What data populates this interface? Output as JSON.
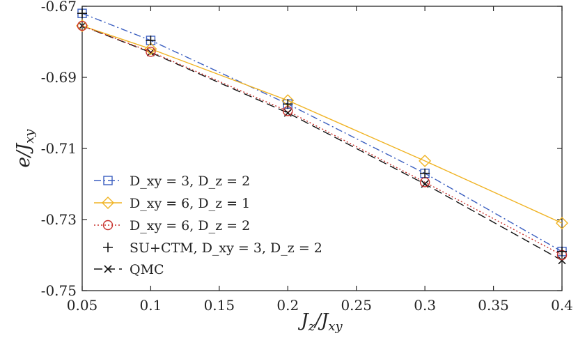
{
  "chart_data": {
    "type": "line",
    "title": "",
    "xlabel": "J_z/J_xy",
    "ylabel": "e/J_xy",
    "xlim": [
      0.05,
      0.4
    ],
    "ylim": [
      -0.75,
      -0.67
    ],
    "x_ticks": [
      0.05,
      0.1,
      0.15,
      0.2,
      0.25,
      0.3,
      0.35,
      0.4
    ],
    "x_tick_labels": [
      "0.05",
      "0.1",
      "0.15",
      "0.2",
      "0.25",
      "0.3",
      "0.35",
      "0.4"
    ],
    "y_ticks": [
      -0.67,
      -0.69,
      -0.71,
      -0.73,
      -0.75
    ],
    "y_tick_labels": [
      "-0.67",
      "-0.69",
      "-0.71",
      "-0.73",
      "-0.75"
    ],
    "grid": false,
    "legend_position": "bottom-left",
    "series": [
      {
        "name": "D_xy = 3, D_z = 2",
        "color": "#3b5fc0",
        "line": "dashdot",
        "marker": "square",
        "x": [
          0.05,
          0.1,
          0.2,
          0.3,
          0.4
        ],
        "y": [
          -0.672,
          -0.6796,
          -0.6975,
          -0.717,
          -0.739
        ]
      },
      {
        "name": "D_xy = 6, D_z = 1",
        "color": "#f0b323",
        "line": "solid",
        "marker": "diamond",
        "x": [
          0.05,
          0.1,
          0.2,
          0.3,
          0.4
        ],
        "y": [
          -0.6755,
          -0.682,
          -0.6965,
          -0.7135,
          -0.731
        ]
      },
      {
        "name": "D_xy = 6, D_z = 2",
        "color": "#c8322d",
        "line": "dotted",
        "marker": "circle",
        "x": [
          0.05,
          0.1,
          0.2,
          0.3,
          0.4
        ],
        "y": [
          -0.6755,
          -0.6828,
          -0.6995,
          -0.7195,
          -0.74
        ]
      },
      {
        "name": "SU+CTM, D_xy = 3, D_z = 2",
        "color": "#111111",
        "line": "none",
        "marker": "plus",
        "x": [
          0.05,
          0.1,
          0.2,
          0.3,
          0.4
        ],
        "y": [
          -0.672,
          -0.6796,
          -0.6975,
          -0.717,
          -0.739
        ]
      },
      {
        "name": "QMC",
        "color": "#111111",
        "line": "dashed",
        "marker": "x",
        "x": [
          0.05,
          0.1,
          0.2,
          0.3,
          0.4
        ],
        "y": [
          -0.6755,
          -0.683,
          -0.7,
          -0.72,
          -0.7415
        ]
      }
    ]
  }
}
